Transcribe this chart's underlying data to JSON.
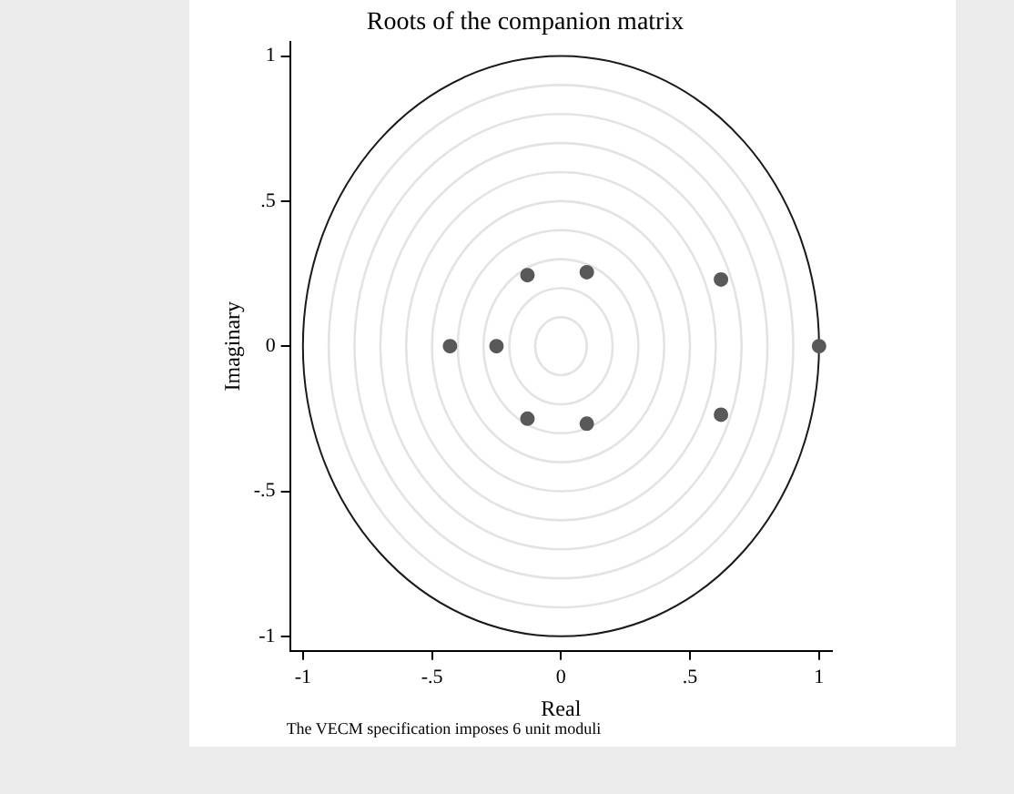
{
  "chart_data": {
    "type": "scatter",
    "title": "Roots of the companion matrix",
    "xlabel": "Real",
    "ylabel": "Imaginary",
    "annotations": [
      "The VECM specification imposes 6 unit moduli"
    ],
    "xlim": [
      -1.05,
      1.05
    ],
    "ylim": [
      -1.05,
      1.05
    ],
    "xticks": [
      {
        "value": -1,
        "label": "-1"
      },
      {
        "value": -0.5,
        "label": "-.5"
      },
      {
        "value": 0,
        "label": "0"
      },
      {
        "value": 0.5,
        "label": ".5"
      },
      {
        "value": 1,
        "label": "1"
      }
    ],
    "yticks": [
      {
        "value": -1,
        "label": "-1"
      },
      {
        "value": -0.5,
        "label": "-.5"
      },
      {
        "value": 0,
        "label": "0"
      },
      {
        "value": 0.5,
        "label": ".5"
      },
      {
        "value": 1,
        "label": "1"
      }
    ],
    "marker": "circle",
    "series": [
      {
        "color": "#595959",
        "x": [
          -0.13,
          0.1,
          0.62,
          -0.43,
          -0.25,
          1,
          -0.13,
          0.1,
          0.62
        ],
        "values": [
          0.245,
          0.255,
          0.23,
          0,
          0,
          0,
          -0.25,
          -0.267,
          -0.236
        ]
      }
    ]
  }
}
